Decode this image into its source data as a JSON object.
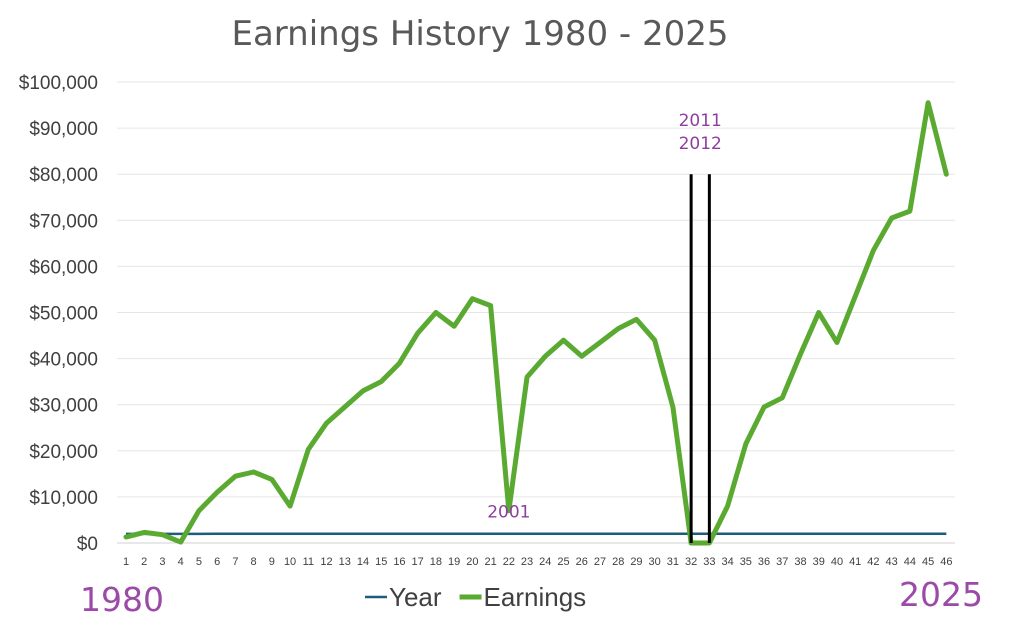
{
  "chart_data": {
    "type": "line",
    "title": "Earnings History 1980 - 2025",
    "xlabel": "",
    "ylabel": "",
    "ylim": [
      0,
      100000
    ],
    "ytick_labels": [
      "$0",
      "$10,000",
      "$20,000",
      "$30,000",
      "$40,000",
      "$50,000",
      "$60,000",
      "$70,000",
      "$80,000",
      "$90,000",
      "$100,000"
    ],
    "categories": [
      "1",
      "2",
      "3",
      "4",
      "5",
      "6",
      "7",
      "8",
      "9",
      "10",
      "11",
      "12",
      "13",
      "14",
      "15",
      "16",
      "17",
      "18",
      "19",
      "20",
      "21",
      "22",
      "23",
      "24",
      "25",
      "26",
      "27",
      "28",
      "29",
      "30",
      "31",
      "32",
      "33",
      "34",
      "35",
      "36",
      "37",
      "38",
      "39",
      "40",
      "41",
      "42",
      "43",
      "44",
      "45",
      "46"
    ],
    "series": [
      {
        "name": "Year",
        "color": "#1f5c7a",
        "values": [
          1980,
          1981,
          1982,
          1983,
          1984,
          1985,
          1986,
          1987,
          1988,
          1989,
          1990,
          1991,
          1992,
          1993,
          1994,
          1995,
          1996,
          1997,
          1998,
          1999,
          2000,
          2001,
          2002,
          2003,
          2004,
          2005,
          2006,
          2007,
          2008,
          2009,
          2010,
          2011,
          2012,
          2013,
          2014,
          2015,
          2016,
          2017,
          2018,
          2019,
          2020,
          2021,
          2022,
          2023,
          2024,
          2025
        ]
      },
      {
        "name": "Earnings",
        "color": "#5aaa32",
        "values": [
          1300,
          2300,
          1800,
          200,
          7000,
          11000,
          14500,
          15400,
          13800,
          8000,
          20300,
          26000,
          29500,
          33000,
          35000,
          39000,
          45500,
          50000,
          47000,
          53000,
          51500,
          7000,
          36000,
          40500,
          44000,
          40500,
          43500,
          46500,
          48500,
          44000,
          29500,
          0,
          0,
          8000,
          21500,
          29500,
          31500,
          41000,
          50000,
          43500,
          53500,
          63500,
          70500,
          72000,
          95500,
          80000
        ]
      }
    ],
    "annotations": [
      "2001",
      "2011",
      "2012"
    ],
    "corner_labels": {
      "left": "1980",
      "right": "2025"
    },
    "legend_position": "bottom",
    "grid": true
  }
}
